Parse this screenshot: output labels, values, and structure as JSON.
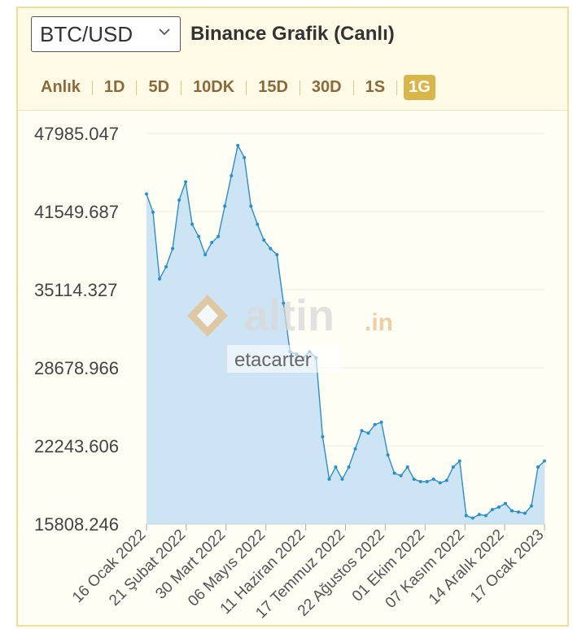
{
  "selector": {
    "value": "BTC/USD"
  },
  "header": {
    "title": "Binance Grafik (Canlı)"
  },
  "tabs": [
    {
      "label": "Anlık",
      "active": false
    },
    {
      "label": "1D",
      "active": false
    },
    {
      "label": "5D",
      "active": false
    },
    {
      "label": "10DK",
      "active": false
    },
    {
      "label": "15D",
      "active": false
    },
    {
      "label": "30D",
      "active": false
    },
    {
      "label": "1S",
      "active": false
    },
    {
      "label": "1G",
      "active": true
    }
  ],
  "watermark": {
    "brand": "altin",
    "tld": ".in",
    "user": "etacarter"
  },
  "colors": {
    "line": "#2a8fc9",
    "fill": "#c8e1f5",
    "accent": "#d9b64a"
  },
  "chart_data": {
    "type": "area",
    "ylim": [
      15808.246,
      47985.047
    ],
    "y_ticks": [
      "47985.047",
      "41549.687",
      "35114.327",
      "28678.966",
      "22243.606",
      "15808.246"
    ],
    "x_ticks": [
      "16 Ocak 2022",
      "21 Şubat 2022",
      "30 Mart 2022",
      "06 Mayıs 2022",
      "11 Haziran 2022",
      "17 Temmuz 2022",
      "22 Ağustos 2022",
      "01 Ekim 2022",
      "07 Kasım 2022",
      "14 Aralık 2022",
      "17 Ocak 2023"
    ],
    "x": [
      "16 Ocak 2022",
      "20 Ocak 2022",
      "25 Ocak 2022",
      "01 Şubat 2022",
      "05 Şubat 2022",
      "10 Şubat 2022",
      "16 Şubat 2022",
      "21 Şubat 2022",
      "26 Şubat 2022",
      "02 Mart 2022",
      "08 Mart 2022",
      "14 Mart 2022",
      "20 Mart 2022",
      "25 Mart 2022",
      "30 Mart 2022",
      "05 Nisan 2022",
      "12 Nisan 2022",
      "18 Nisan 2022",
      "24 Nisan 2022",
      "30 Nisan 2022",
      "06 Mayıs 2022",
      "09 Mayıs 2022",
      "12 Mayıs 2022",
      "20 Mayıs 2022",
      "28 Mayıs 2022",
      "05 Haziran 2022",
      "11 Haziran 2022",
      "13 Haziran 2022",
      "18 Haziran 2022",
      "25 Haziran 2022",
      "02 Temmuz 2022",
      "10 Temmuz 2022",
      "17 Temmuz 2022",
      "24 Temmuz 2022",
      "01 Ağustos 2022",
      "10 Ağustos 2022",
      "15 Ağustos 2022",
      "22 Ağustos 2022",
      "28 Ağustos 2022",
      "05 Eylül 2022",
      "12 Eylül 2022",
      "19 Eylül 2022",
      "26 Eylül 2022",
      "01 Ekim 2022",
      "08 Ekim 2022",
      "15 Ekim 2022",
      "22 Ekim 2022",
      "29 Ekim 2022",
      "05 Kasım 2022",
      "07 Kasım 2022",
      "09 Kasım 2022",
      "15 Kasım 2022",
      "22 Kasım 2022",
      "01 Aralık 2022",
      "08 Aralık 2022",
      "14 Aralık 2022",
      "20 Aralık 2022",
      "27 Aralık 2022",
      "03 Ocak 2023",
      "10 Ocak 2023",
      "14 Ocak 2023",
      "17 Ocak 2023"
    ],
    "y": [
      43000,
      41500,
      36000,
      37000,
      38500,
      42500,
      44000,
      40500,
      39500,
      38000,
      39000,
      39500,
      42000,
      44500,
      47000,
      46000,
      42000,
      40500,
      39200,
      38500,
      38000,
      34000,
      30000,
      29800,
      29500,
      30000,
      29500,
      23000,
      19500,
      20500,
      19500,
      20500,
      22000,
      23500,
      23300,
      24000,
      24200,
      21500,
      20000,
      19800,
      20500,
      19500,
      19300,
      19300,
      19500,
      19200,
      19400,
      20500,
      21000,
      16500,
      16300,
      16600,
      16500,
      17000,
      17200,
      17500,
      16900,
      16800,
      16700,
      17300,
      20500,
      21000
    ]
  }
}
